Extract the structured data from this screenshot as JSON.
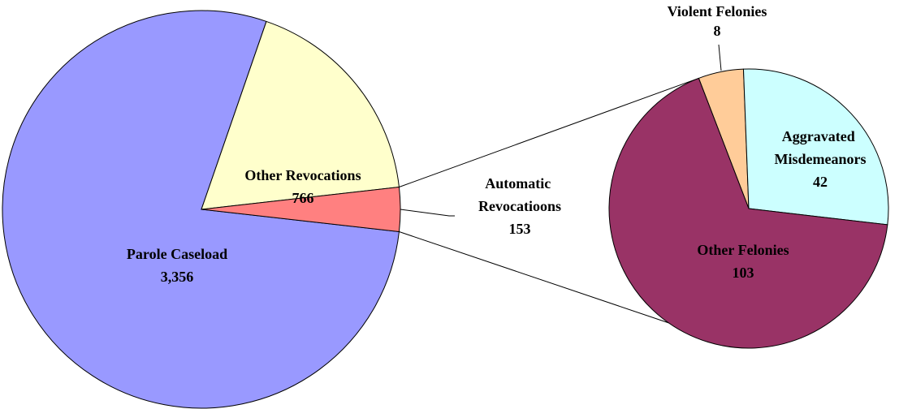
{
  "chart_data": [
    {
      "type": "pie",
      "categories": [
        "Parole Caseload",
        "Other Revocations",
        "Automatic Revocatioons"
      ],
      "values": [
        3356,
        766,
        153
      ],
      "value_labels": [
        "3,356",
        "766",
        "153"
      ],
      "colors": [
        "#9999ff",
        "#ffffcc",
        "#ff8080"
      ]
    },
    {
      "type": "pie",
      "categories": [
        "Violent Felonies",
        "Aggravated Misdemeanors",
        "Other Felonies"
      ],
      "values": [
        8,
        42,
        103
      ],
      "colors": [
        "#ffcc99",
        "#ccffff",
        "#993366"
      ]
    }
  ]
}
